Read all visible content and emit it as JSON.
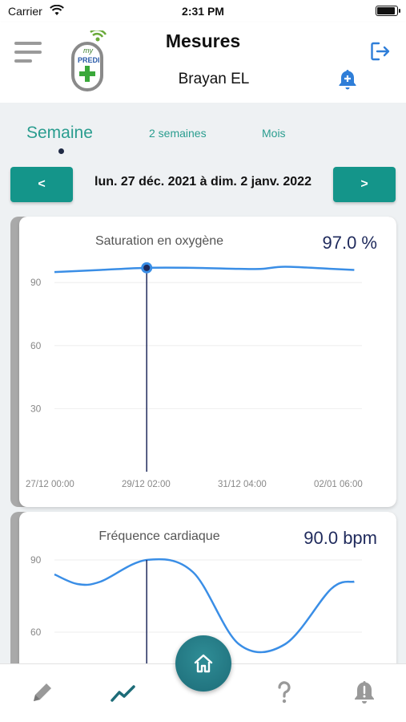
{
  "status_bar": {
    "carrier": "Carrier",
    "time": "2:31 PM",
    "battery_level": 0.95
  },
  "header": {
    "title": "Mesures",
    "user_name": "Brayan EL",
    "logo_text": "PREDI",
    "logo_small": "my"
  },
  "tabs": [
    {
      "label": "Semaine",
      "active": true
    },
    {
      "label": "2 semaines",
      "active": false
    },
    {
      "label": "Mois",
      "active": false
    }
  ],
  "date_nav": {
    "prev_label": "<",
    "next_label": ">",
    "range": "lun. 27 déc. 2021 à dim. 2 janv. 2022"
  },
  "colors": {
    "accent": "#14958a",
    "tab_text": "#2a9d8f",
    "line": "#3a8ee6",
    "value_text": "#1f2a5c",
    "cursor": "#1f2a5c"
  },
  "chart_data": [
    {
      "type": "line",
      "title": "Saturation en oxygène",
      "current_value": "97.0 %",
      "x": [
        "27/12 00:00",
        "28/12 00:00",
        "29/12 00:00",
        "30/12 00:00",
        "31/12 00:00",
        "31/12 12:00",
        "01/01 00:00",
        "02/01 00:00",
        "02/01 12:00"
      ],
      "x_hours": [
        0,
        24,
        48,
        72,
        96,
        108,
        120,
        144,
        156
      ],
      "values": [
        95,
        96,
        97,
        97,
        96.5,
        96.5,
        97.5,
        96.5,
        96
      ],
      "cursor_index": 2,
      "xtick_labels": [
        "27/12  00:00",
        "29/12  02:00",
        "31/12  04:00",
        "02/01  06:00"
      ],
      "xtick_hours": [
        0,
        50,
        100,
        150
      ],
      "yticks": [
        30,
        60,
        90
      ],
      "ylim": [
        0,
        100
      ],
      "xlim_hours": [
        0,
        160
      ],
      "grid": true
    },
    {
      "type": "line",
      "title": "Fréquence cardiaque",
      "current_value": "90.0 bpm",
      "x_hours": [
        0,
        12,
        24,
        48,
        72,
        96,
        120,
        144,
        156
      ],
      "values": [
        84,
        80,
        81,
        90,
        85,
        55,
        55,
        78,
        81
      ],
      "cursor_index": 3,
      "yticks": [
        60,
        90
      ],
      "ylim": [
        0,
        100
      ],
      "xlim_hours": [
        0,
        160
      ],
      "grid": true
    }
  ],
  "bottom_nav": [
    {
      "name": "edit",
      "icon": "pencil-icon"
    },
    {
      "name": "measures",
      "icon": "chart-line-icon",
      "active": true
    },
    {
      "name": "home",
      "icon": "home-icon"
    },
    {
      "name": "help",
      "icon": "question-icon"
    },
    {
      "name": "alerts",
      "icon": "bell-alert-icon"
    }
  ]
}
